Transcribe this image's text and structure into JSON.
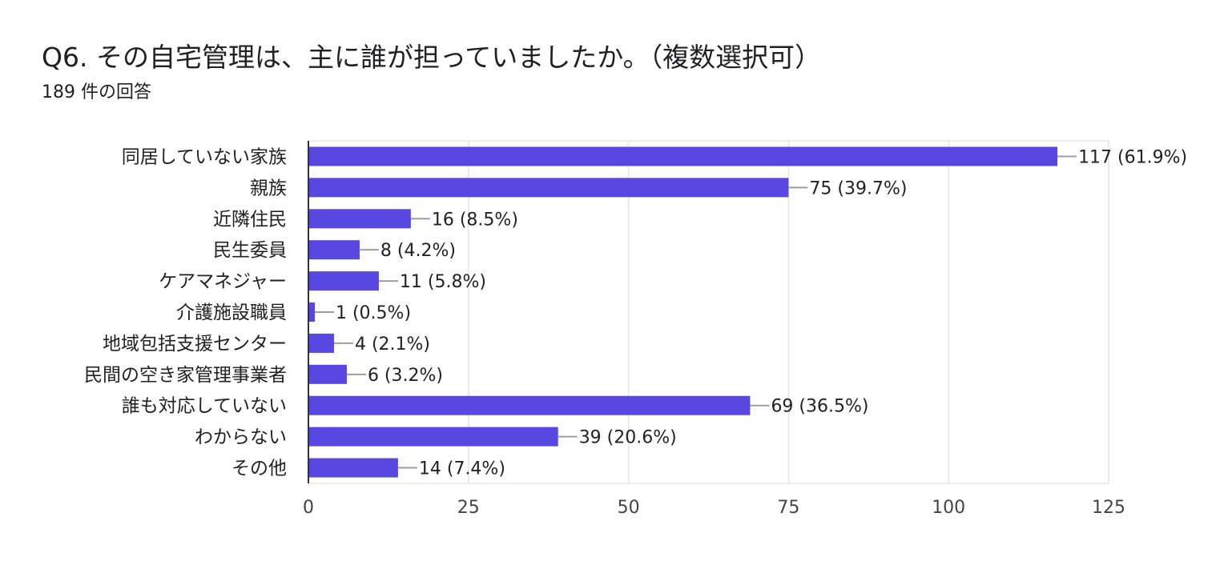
{
  "title": "Q6. その自宅管理は、主に誰が担っていましたか。（複数選択可）",
  "subtitle": "189 件の回答",
  "colors": {
    "bar": "#5847e0",
    "grid": "#e5e5e5",
    "axis": "#333333",
    "leader": "#9e9e9e"
  },
  "chart_data": {
    "type": "bar",
    "orientation": "horizontal",
    "categories": [
      "同居していない家族",
      "親族",
      "近隣住民",
      "民生委員",
      "ケアマネジャー",
      "介護施設職員",
      "地域包括支援センター",
      "民間の空き家管理事業者",
      "誰も対応していない",
      "わからない",
      "その他"
    ],
    "values": [
      117,
      75,
      16,
      8,
      11,
      1,
      4,
      6,
      69,
      39,
      14
    ],
    "labels": [
      "117 (61.9%)",
      "75 (39.7%)",
      "16 (8.5%)",
      "8 (4.2%)",
      "11 (5.8%)",
      "1 (0.5%)",
      "4 (2.1%)",
      "6 (3.2%)",
      "69 (36.5%)",
      "39 (20.6%)",
      "14 (7.4%)"
    ],
    "xlim": [
      0,
      125
    ],
    "xticks": [
      0,
      25,
      50,
      75,
      100,
      125
    ],
    "xtick_labels": [
      "0",
      "25",
      "50",
      "75",
      "100",
      "125"
    ],
    "grid": true,
    "legend": "none"
  }
}
